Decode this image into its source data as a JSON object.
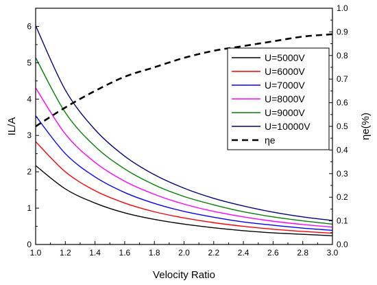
{
  "chart_data": {
    "type": "line",
    "title": "",
    "xlabel": "Velocity Ratio",
    "ylabel": "IL/A",
    "y2label": "ηe(%)",
    "xlim": [
      1.0,
      3.0
    ],
    "ylim": [
      0,
      6.5
    ],
    "y2lim": [
      0.0,
      1.0
    ],
    "x_ticks": [
      "1.0",
      "1.2",
      "1.4",
      "1.6",
      "1.8",
      "2.0",
      "2.2",
      "2.4",
      "2.6",
      "2.8",
      "3.0"
    ],
    "y_ticks": [
      "0",
      "1",
      "2",
      "3",
      "4",
      "5",
      "6"
    ],
    "y2_ticks": [
      "0.0",
      "0.1",
      "0.2",
      "0.3",
      "0.4",
      "0.5",
      "0.6",
      "0.7",
      "0.8",
      "0.9",
      "1.0"
    ],
    "grid": false,
    "legend_position": "top-right",
    "x": [
      1.0,
      1.2,
      1.4,
      1.6,
      1.8,
      2.0,
      2.2,
      2.4,
      2.6,
      2.8,
      3.0
    ],
    "series": [
      {
        "name": "U=5000V",
        "axis": "left",
        "color": "#000000",
        "dash": "solid",
        "values": [
          2.17,
          1.53,
          1.14,
          0.87,
          0.69,
          0.56,
          0.46,
          0.38,
          0.32,
          0.28,
          0.24
        ]
      },
      {
        "name": "U=6000V",
        "axis": "left",
        "color": "#ff0000",
        "dash": "solid",
        "values": [
          2.83,
          2.0,
          1.48,
          1.14,
          0.9,
          0.73,
          0.6,
          0.5,
          0.42,
          0.36,
          0.31
        ]
      },
      {
        "name": "U=7000V",
        "axis": "left",
        "color": "#0000ff",
        "dash": "solid",
        "values": [
          3.54,
          2.5,
          1.86,
          1.43,
          1.13,
          0.91,
          0.75,
          0.62,
          0.53,
          0.45,
          0.39
        ]
      },
      {
        "name": "U=8000V",
        "axis": "left",
        "color": "#ff00ff",
        "dash": "solid",
        "values": [
          4.31,
          3.04,
          2.26,
          1.74,
          1.38,
          1.11,
          0.91,
          0.76,
          0.64,
          0.55,
          0.48
        ]
      },
      {
        "name": "U=9000V",
        "axis": "left",
        "color": "#008000",
        "dash": "solid",
        "values": [
          5.14,
          3.63,
          2.7,
          2.08,
          1.64,
          1.32,
          1.09,
          0.9,
          0.76,
          0.65,
          0.56
        ]
      },
      {
        "name": "U=10000V",
        "axis": "left",
        "color": "#000080",
        "dash": "solid",
        "values": [
          6.02,
          4.25,
          3.16,
          2.43,
          1.92,
          1.55,
          1.27,
          1.06,
          0.89,
          0.76,
          0.66
        ]
      },
      {
        "name": "ηe",
        "axis": "right",
        "color": "#000000",
        "dash": "dashed",
        "values": [
          0.5,
          0.58,
          0.65,
          0.71,
          0.75,
          0.79,
          0.82,
          0.84,
          0.86,
          0.88,
          0.89
        ]
      }
    ]
  }
}
